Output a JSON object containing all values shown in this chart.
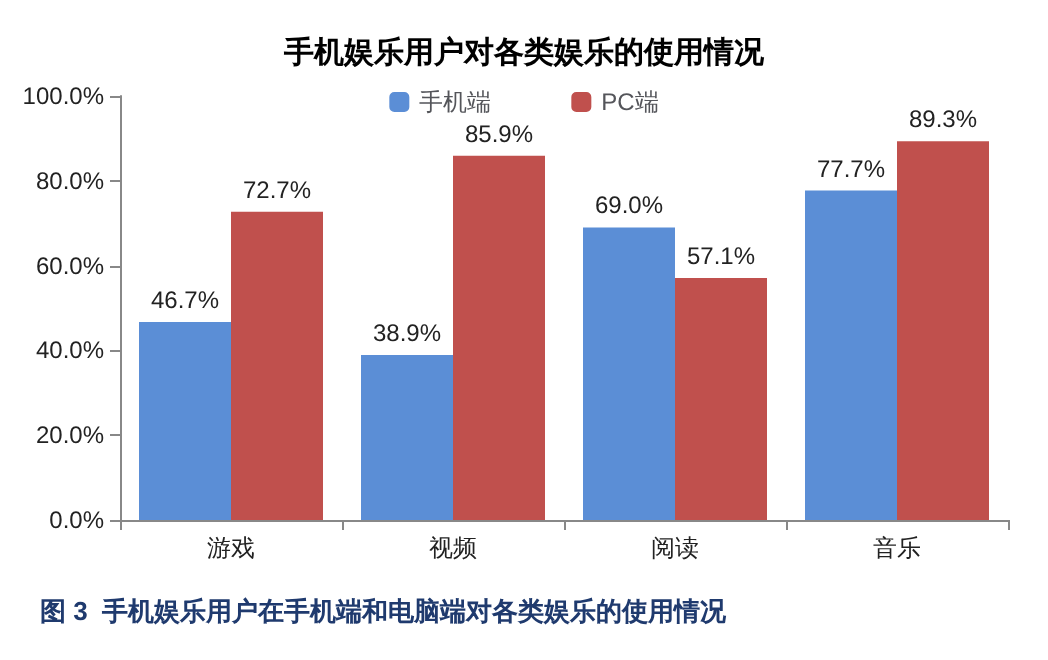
{
  "chart_data": {
    "type": "bar",
    "title": "手机娱乐用户对各类娱乐的使用情况",
    "categories": [
      "游戏",
      "视频",
      "阅读",
      "音乐"
    ],
    "series": [
      {
        "name": "手机端",
        "color": "#5b8ed6",
        "values": [
          46.7,
          38.9,
          69.0,
          77.7
        ],
        "value_labels": [
          "46.7%",
          "38.9%",
          "69.0%",
          "77.7%"
        ]
      },
      {
        "name": "PC端",
        "color": "#c0504d",
        "values": [
          72.7,
          85.9,
          57.1,
          89.3
        ],
        "value_labels": [
          "72.7%",
          "85.9%",
          "57.1%",
          "89.3%"
        ]
      }
    ],
    "ylim": [
      0,
      100
    ],
    "yticks": [
      {
        "value": 0,
        "label": "0.0%"
      },
      {
        "value": 20,
        "label": "20.0%"
      },
      {
        "value": 40,
        "label": "40.0%"
      },
      {
        "value": 60,
        "label": "60.0%"
      },
      {
        "value": 80,
        "label": "80.0%"
      },
      {
        "value": 100,
        "label": "100.0%"
      }
    ],
    "legend": "top",
    "grid": false,
    "annotations": [
      "图 3  手机娱乐用户在手机端和电脑端对各类娱乐的使用情况"
    ]
  }
}
